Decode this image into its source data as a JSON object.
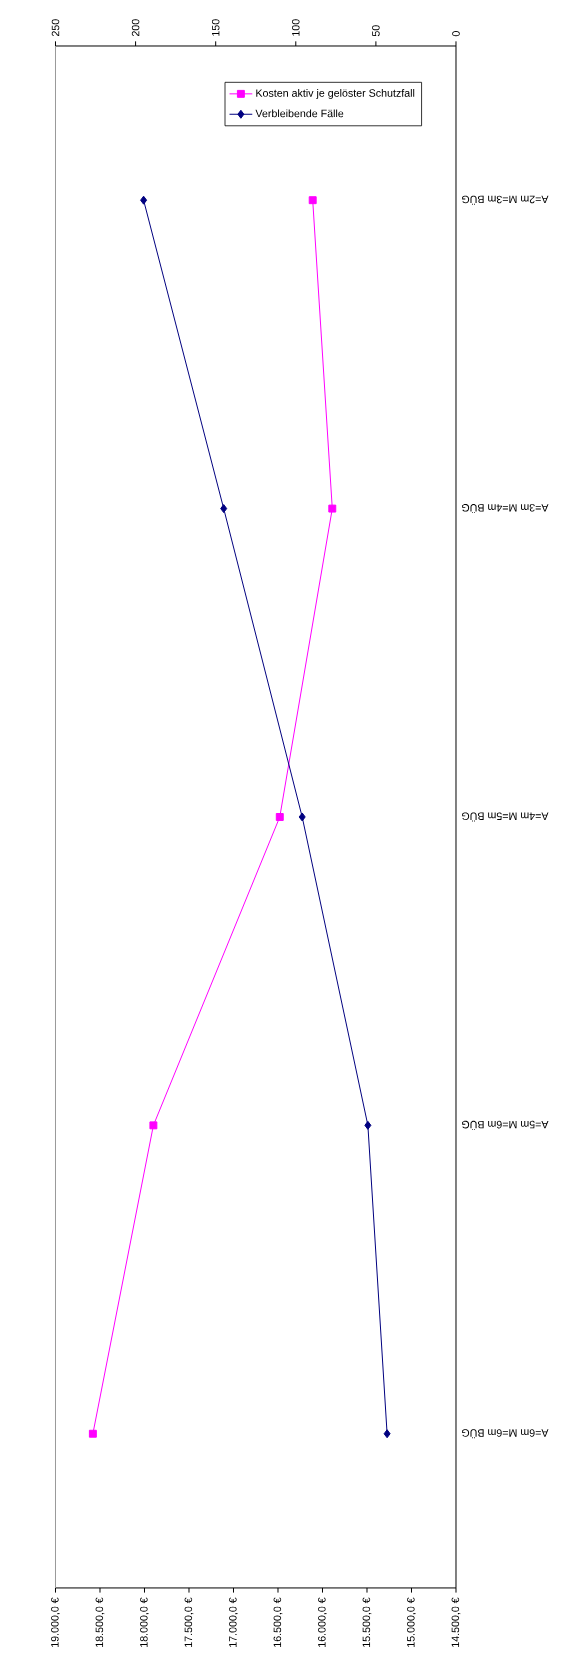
{
  "chart_data": {
    "type": "line",
    "orientation": "horizontal",
    "legend": "top right",
    "categories": [
      "A=2m M=3m BÜG",
      "A=3m M=4m BÜG",
      "A=4m M=5m BÜG",
      "A=5m M=6m BÜG",
      "A=6m M=6m BÜG"
    ],
    "xlim": [
      19000,
      14500
    ],
    "xticks": [
      {
        "value": 19000,
        "label": "19.000,0 €"
      },
      {
        "value": 18500,
        "label": "18.500,0 €"
      },
      {
        "value": 18000,
        "label": "18.000,0 €"
      },
      {
        "value": 17500,
        "label": "17.500,0 €"
      },
      {
        "value": 17000,
        "label": "17.000,0 €"
      },
      {
        "value": 16500,
        "label": "16.500,0 €"
      },
      {
        "value": 16000,
        "label": "16.000,0 €"
      },
      {
        "value": 15500,
        "label": "15.500,0 €"
      },
      {
        "value": 15000,
        "label": "15.000,0 €"
      },
      {
        "value": 14500,
        "label": "14.500,0 €"
      }
    ],
    "x2lim": [
      250,
      0
    ],
    "x2ticks": [
      250,
      200,
      150,
      100,
      50,
      0
    ],
    "series": [
      {
        "name": "Kosten aktiv je gelöster Schutzfall",
        "color": "#ff00ff",
        "marker": "square",
        "values": [
          16110,
          15890,
          16480,
          17900,
          18580
        ]
      },
      {
        "name": "Verbleibende Fälle",
        "color": "#000080",
        "marker": "diamond",
        "axis": "x2",
        "values": [
          195,
          145,
          96,
          55,
          43
        ]
      }
    ]
  }
}
